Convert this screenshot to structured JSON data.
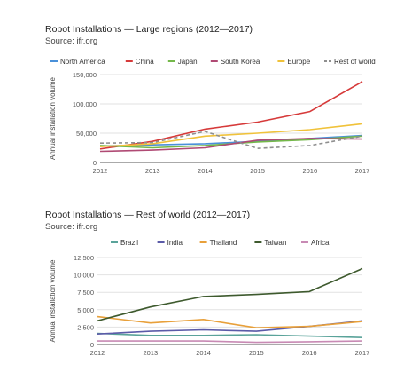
{
  "chart_data": [
    {
      "type": "line",
      "title": "Robot Installations — Large regions (2012—2017)",
      "subtitle": "Source: ifr.org",
      "xlabel": "",
      "ylabel": "Annual installation volume",
      "x": [
        "2012",
        "2013",
        "2014",
        "2015",
        "2016",
        "2017"
      ],
      "ylim": [
        0,
        150000
      ],
      "yticks": [
        "0",
        "50,000",
        "100,000",
        "150,000"
      ],
      "yticks_values": [
        0,
        50000,
        100000,
        150000
      ],
      "grid": true,
      "legend_position": "top",
      "series": [
        {
          "name": "North America",
          "color": "#4a90d9",
          "dashed": false,
          "values": [
            28000,
            30000,
            32000,
            36000,
            41000,
            46000
          ]
        },
        {
          "name": "China",
          "color": "#d63a3a",
          "dashed": false,
          "values": [
            23000,
            36000,
            57000,
            69000,
            87000,
            138000
          ]
        },
        {
          "name": "Japan",
          "color": "#74b84a",
          "dashed": false,
          "values": [
            29000,
            25000,
            29000,
            35000,
            39000,
            45000
          ]
        },
        {
          "name": "South Korea",
          "color": "#b04a74",
          "dashed": false,
          "values": [
            19000,
            21000,
            25000,
            38000,
            41000,
            40000
          ]
        },
        {
          "name": "Europe",
          "color": "#f0c23a",
          "dashed": false,
          "values": [
            27000,
            32000,
            45000,
            50000,
            56000,
            66000
          ]
        },
        {
          "name": "Rest of world",
          "color": "#8f8f8f",
          "dashed": true,
          "values": [
            33000,
            34000,
            53000,
            24000,
            29000,
            45000
          ]
        }
      ]
    },
    {
      "type": "line",
      "title": "Robot Installations — Rest of world (2012—2017)",
      "subtitle": "Source: ifr.org",
      "xlabel": "",
      "ylabel": "Annual installation volume",
      "x": [
        "2012",
        "2013",
        "2014",
        "2015",
        "2016",
        "2017"
      ],
      "ylim": [
        0,
        12500
      ],
      "yticks": [
        "0",
        "2,500",
        "5,000",
        "7,500",
        "10,000",
        "12,500"
      ],
      "yticks_values": [
        0,
        2500,
        5000,
        7500,
        10000,
        12500
      ],
      "grid": true,
      "legend_position": "top",
      "series": [
        {
          "name": "Brazil",
          "color": "#5aa39a",
          "dashed": false,
          "values": [
            1600,
            1300,
            1300,
            1400,
            1200,
            1000
          ]
        },
        {
          "name": "India",
          "color": "#5b5ba8",
          "dashed": false,
          "values": [
            1500,
            1900,
            2100,
            1900,
            2600,
            3400
          ]
        },
        {
          "name": "Thailand",
          "color": "#e8a03a",
          "dashed": false,
          "values": [
            4000,
            3100,
            3600,
            2400,
            2600,
            3300
          ]
        },
        {
          "name": "Taiwan",
          "color": "#3e5a2e",
          "dashed": false,
          "values": [
            3400,
            5400,
            6900,
            7200,
            7600,
            10900
          ]
        },
        {
          "name": "Africa",
          "color": "#c88ab4",
          "dashed": false,
          "values": [
            500,
            500,
            500,
            300,
            400,
            500
          ]
        }
      ]
    }
  ]
}
